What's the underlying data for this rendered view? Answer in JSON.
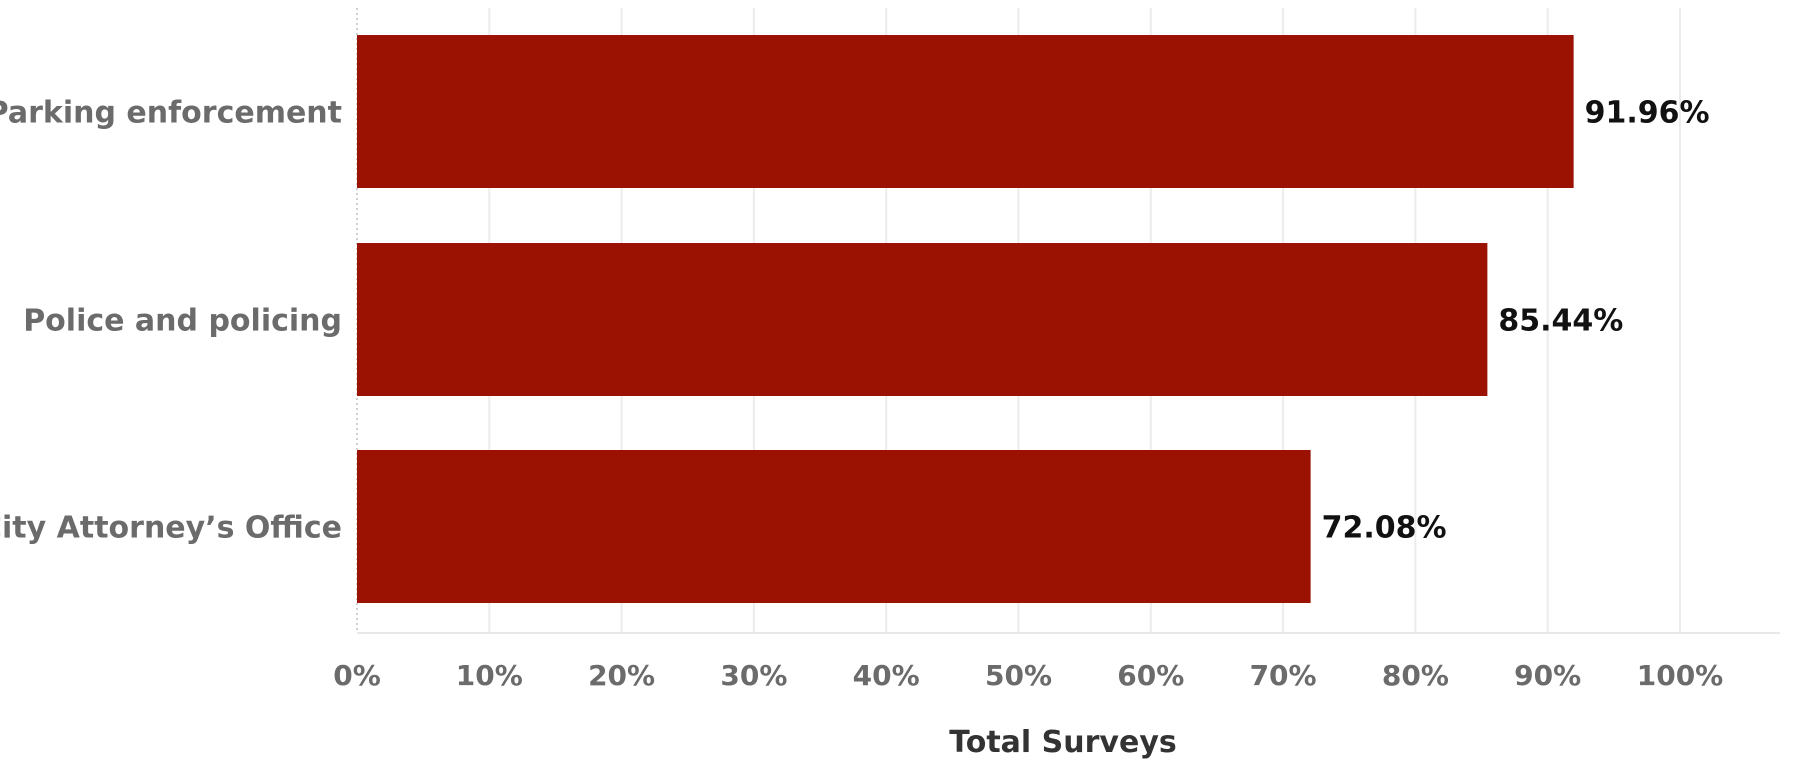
{
  "chart_data": {
    "type": "bar",
    "orientation": "horizontal",
    "categories": [
      "Parking enforcement",
      "Police and policing",
      "City Attorney’s Office"
    ],
    "values": [
      91.96,
      85.44,
      72.08
    ],
    "data_labels": [
      "91.96%",
      "85.44%",
      "72.08%"
    ],
    "xlabel": "Total Surveys",
    "ylabel": "",
    "xlim": [
      0,
      100
    ],
    "x_ticks": [
      0,
      10,
      20,
      30,
      40,
      50,
      60,
      70,
      80,
      90,
      100
    ],
    "x_tick_labels": [
      "0%",
      "10%",
      "20%",
      "30%",
      "40%",
      "50%",
      "60%",
      "70%",
      "80%",
      "90%",
      "100%"
    ],
    "grid": true,
    "legend": "none",
    "colors": {
      "bar": "#9b1203"
    }
  }
}
